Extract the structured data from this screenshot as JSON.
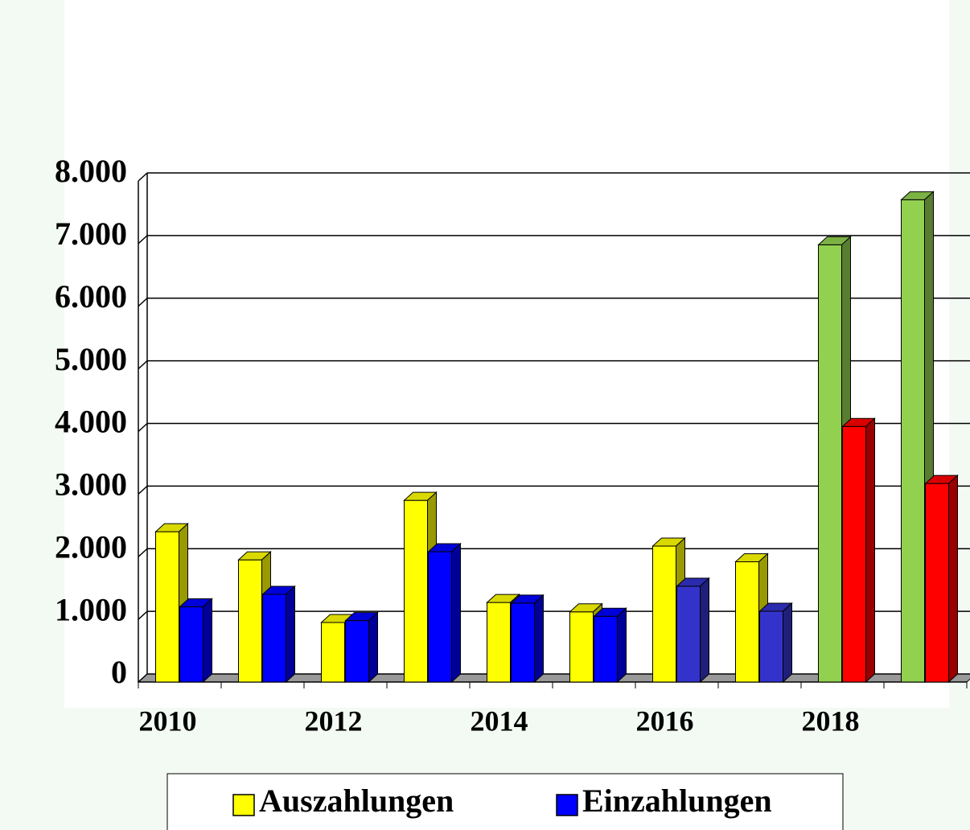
{
  "chart_data": {
    "type": "bar3d",
    "categories": [
      "2010",
      null,
      "2012",
      null,
      "2014",
      null,
      "2016",
      null,
      "2018",
      null
    ],
    "series": [
      {
        "name": "Auszahlungen",
        "color": "#ffff00",
        "colors": [
          "#ffff00",
          "#ffff00",
          "#ffff00",
          "#ffff00",
          "#ffff00",
          "#ffff00",
          "#ffff00",
          "#ffff00",
          "#92d050",
          "#92d050"
        ],
        "values": [
          2400,
          1950,
          950,
          2900,
          1270,
          1120,
          2170,
          1920,
          6980,
          7700
        ]
      },
      {
        "name": "Einzahlungen",
        "color": "#0000ff",
        "colors": [
          "#0000ff",
          "#0000ff",
          "#0000ff",
          "#0000ff",
          "#0000ff",
          "#0000ff",
          "#3333cc",
          "#3333cc",
          "#ff0000",
          "#ff0000"
        ],
        "values": [
          1200,
          1400,
          980,
          2080,
          1260,
          1050,
          1530,
          1130,
          4080,
          3170
        ]
      }
    ],
    "ylim": [
      0,
      8000
    ],
    "yticks": [
      0,
      {
        "value": 1000,
        "label": "1.000"
      },
      {
        "value": 2000,
        "label": "2.000"
      },
      {
        "value": 3000,
        "label": "3.000"
      },
      {
        "value": 4000,
        "label": "4.000"
      },
      {
        "value": 5000,
        "label": "5.000"
      },
      {
        "value": 6000,
        "label": "6.000"
      },
      {
        "value": 7000,
        "label": "7.000"
      },
      {
        "value": 8000,
        "label": "8.000"
      }
    ],
    "grid": true,
    "legend": "bottom"
  }
}
